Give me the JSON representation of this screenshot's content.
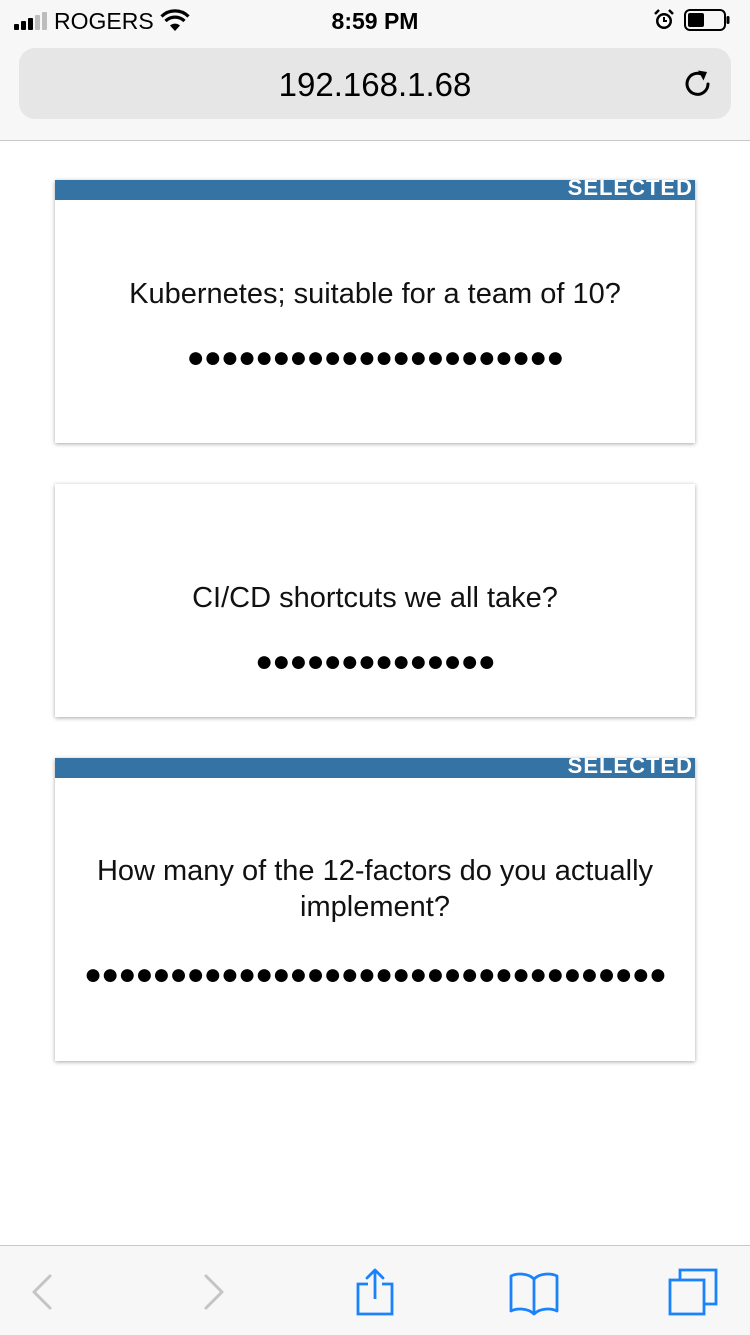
{
  "status_bar": {
    "carrier": "ROGERS",
    "time": "8:59 PM",
    "icons": [
      "signal-icon",
      "wifi-icon",
      "alarm-icon",
      "battery-icon"
    ]
  },
  "browser": {
    "url": "192.168.1.68",
    "reload_icon": "reload-icon"
  },
  "cards": [
    {
      "selected": true,
      "selected_label": "SELECTED",
      "question": "Kubernetes; suitable for a team of 10?",
      "votes": 22,
      "vote_dots": "●●●●●●●●●●●●●●●●●●●●●●"
    },
    {
      "selected": false,
      "selected_label": "",
      "question": "CI/CD shortcuts we all take?",
      "votes": 14,
      "vote_dots": "●●●●●●●●●●●●●●"
    },
    {
      "selected": true,
      "selected_label": "SELECTED",
      "question": "How many of the 12-factors do you actually implement?",
      "votes": 34,
      "vote_dots": "●●●●●●●●●●●●●●●●●●●●●●●●●●●●●●●●●●"
    }
  ],
  "toolbar": {
    "icons": [
      "back-icon",
      "forward-icon",
      "share-icon",
      "bookmarks-icon",
      "tabs-icon"
    ]
  },
  "colors": {
    "selected_banner": "#3573a5",
    "ios_tint": "#1a82fb",
    "disabled_gray": "#c4c4c6"
  }
}
